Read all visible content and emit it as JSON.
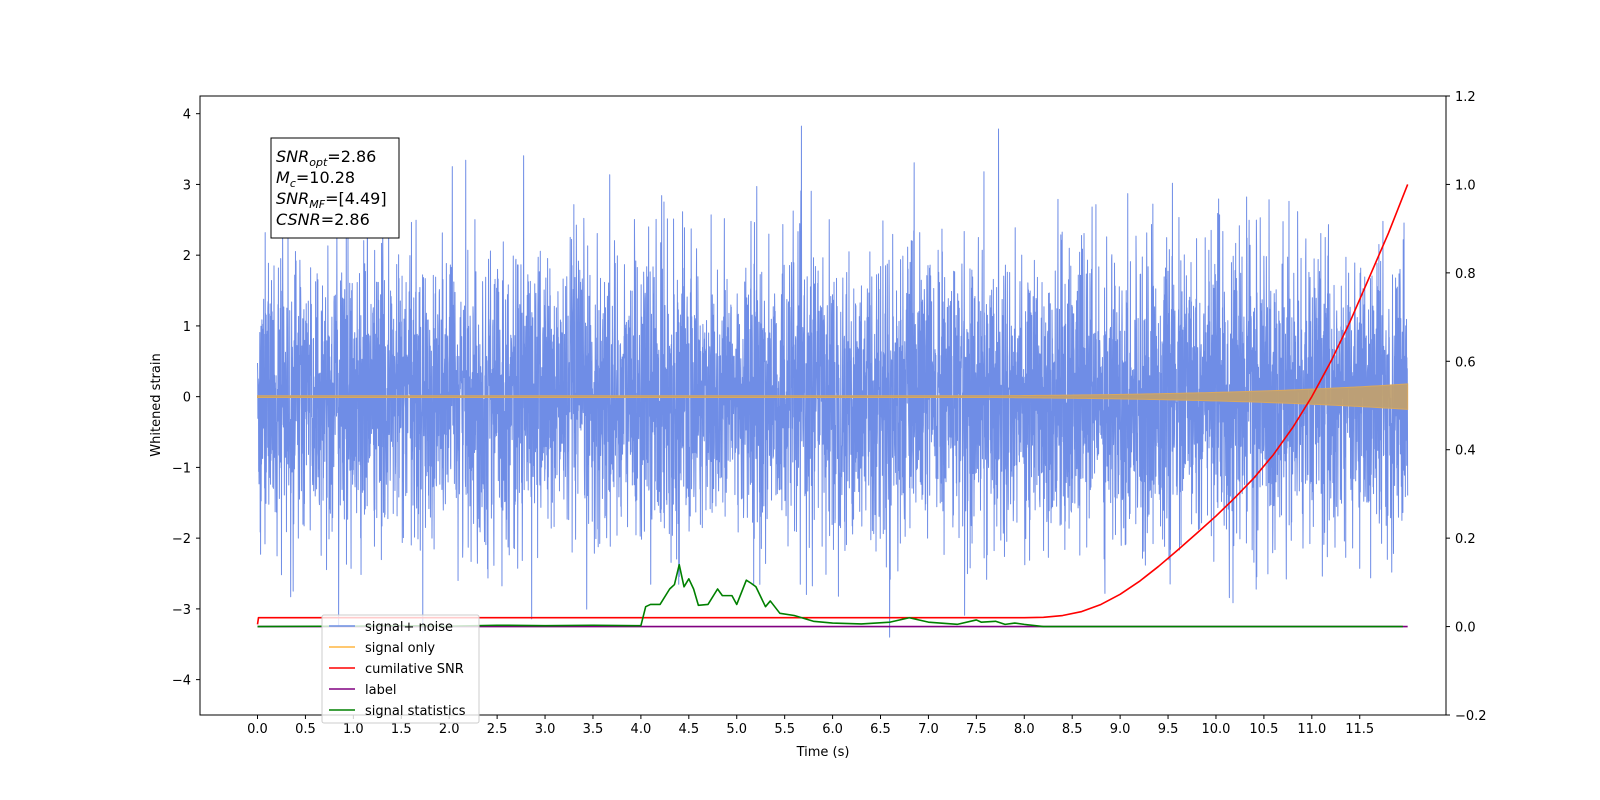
{
  "chart_data": {
    "type": "line",
    "title": "",
    "xlabel": "Time (s)",
    "ylabel": "Whitened strain",
    "ylabel_right": "",
    "xlim": [
      -0.6,
      12.4
    ],
    "ylim": [
      -4.5,
      4.25
    ],
    "ylim_right": [
      -0.2,
      1.2
    ],
    "x_ticks": [
      "0.0",
      "0.5",
      "1.0",
      "1.5",
      "2.0",
      "2.5",
      "3.0",
      "3.5",
      "4.0",
      "4.5",
      "5.0",
      "5.5",
      "6.0",
      "6.5",
      "7.0",
      "7.5",
      "8.0",
      "8.5",
      "9.0",
      "9.5",
      "10.0",
      "10.5",
      "11.0",
      "11.5"
    ],
    "y_ticks_left": [
      "4",
      "3",
      "2",
      "1",
      "0",
      "−1",
      "−2",
      "−3",
      "−4"
    ],
    "y_ticks_right": [
      "1.2",
      "1.0",
      "0.8",
      "0.6",
      "0.4",
      "0.2",
      "0.0",
      "−0.2"
    ],
    "grid": false,
    "legend_position": "bottom-left",
    "annotation": [
      {
        "base": "SNR",
        "sub": "opt",
        "value": "=2.86"
      },
      {
        "base": "M",
        "sub": "c",
        "value": "=10.28"
      },
      {
        "base": "SNR",
        "sub": "MF",
        "value": "=[4.49]"
      },
      {
        "base": "CSNR",
        "sub": "",
        "value": "=2.86"
      }
    ],
    "series": [
      {
        "name": "signal+ noise",
        "color": "#6f8de6",
        "axis": "left",
        "kind": "noise",
        "x_range": [
          0.0,
          12.0
        ],
        "std": 1.0,
        "ylim_extent": [
          -3.75,
          3.88
        ]
      },
      {
        "name": "signal only",
        "color": "#ffb640",
        "axis": "left",
        "kind": "chirp",
        "x_range": [
          0.0,
          12.0
        ],
        "amplitude_end": 0.18
      },
      {
        "name": "cumilative SNR",
        "color": "#ff0000",
        "axis": "right",
        "x": [
          0.0,
          0.01,
          8.0,
          8.2,
          8.4,
          8.6,
          8.8,
          9.0,
          9.2,
          9.4,
          9.6,
          9.8,
          10.0,
          10.2,
          10.4,
          10.6,
          10.8,
          11.0,
          11.2,
          11.4,
          11.6,
          11.8,
          12.0
        ],
        "y": [
          0.005,
          0.02,
          0.02,
          0.021,
          0.025,
          0.034,
          0.05,
          0.073,
          0.102,
          0.136,
          0.173,
          0.211,
          0.25,
          0.292,
          0.337,
          0.389,
          0.45,
          0.52,
          0.6,
          0.69,
          0.79,
          0.89,
          1.0
        ]
      },
      {
        "name": "label",
        "color": "#800080",
        "axis": "right",
        "x": [
          0.0,
          12.0
        ],
        "y": [
          0.0,
          0.0
        ]
      },
      {
        "name": "signal statistics",
        "color": "#008000",
        "axis": "right",
        "x": [
          0.0,
          1.0,
          1.5,
          2.0,
          2.5,
          3.0,
          3.5,
          4.0,
          4.05,
          4.1,
          4.2,
          4.3,
          4.35,
          4.4,
          4.45,
          4.5,
          4.55,
          4.6,
          4.7,
          4.8,
          4.85,
          4.95,
          5.0,
          5.1,
          5.15,
          5.2,
          5.3,
          5.35,
          5.45,
          5.6,
          5.8,
          6.0,
          6.3,
          6.6,
          6.8,
          7.0,
          7.3,
          7.5,
          7.55,
          7.7,
          7.8,
          7.9,
          8.0,
          8.2,
          8.5,
          9.0,
          9.5,
          10.0,
          10.5,
          11.0,
          11.5,
          11.95
        ],
        "y": [
          0.0,
          0.001,
          0.002,
          0.001,
          0.003,
          0.002,
          0.003,
          0.002,
          0.045,
          0.05,
          0.05,
          0.085,
          0.095,
          0.14,
          0.09,
          0.108,
          0.085,
          0.048,
          0.05,
          0.085,
          0.07,
          0.07,
          0.05,
          0.105,
          0.098,
          0.09,
          0.045,
          0.058,
          0.03,
          0.025,
          0.012,
          0.008,
          0.006,
          0.01,
          0.02,
          0.01,
          0.005,
          0.015,
          0.01,
          0.012,
          0.005,
          0.008,
          0.005,
          0.0,
          0.0,
          0.0,
          0.0,
          0.0,
          0.0,
          0.0,
          0.0,
          0.0
        ]
      }
    ]
  }
}
